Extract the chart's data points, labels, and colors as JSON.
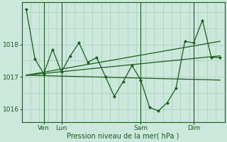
{
  "background_color": "#cce8dc",
  "grid_color_h": "#aaccbb",
  "grid_color_v": "#aaccbb",
  "line_color": "#1a5c1a",
  "text_color": "#1a5c1a",
  "xlabel": "Pression niveau de la mer( hPa )",
  "yticks": [
    1016,
    1017,
    1018
  ],
  "ylim": [
    1015.6,
    1019.3
  ],
  "xlim": [
    -0.5,
    22.5
  ],
  "xtick_positions": [
    2,
    4,
    13,
    19
  ],
  "xtick_labels": [
    "Ven",
    "Lun",
    "Sam",
    "Dim"
  ],
  "vline_positions": [
    2,
    4,
    13,
    19
  ],
  "series1": {
    "x": [
      0,
      1,
      2,
      3,
      4,
      5,
      6,
      7,
      8,
      9,
      10,
      11,
      12,
      13,
      14,
      15,
      16,
      17,
      18,
      19,
      20,
      21,
      22
    ],
    "y": [
      1019.1,
      1017.55,
      1017.1,
      1017.85,
      1017.15,
      1017.65,
      1018.05,
      1017.45,
      1017.6,
      1017.0,
      1016.4,
      1016.85,
      1017.35,
      1016.9,
      1016.05,
      1015.95,
      1016.2,
      1016.65,
      1018.1,
      1018.05,
      1018.75,
      1017.6,
      1017.6
    ]
  },
  "series2": {
    "x": [
      0,
      22
    ],
    "y": [
      1017.05,
      1016.9
    ]
  },
  "series3": {
    "x": [
      0,
      22
    ],
    "y": [
      1017.05,
      1017.65
    ]
  },
  "series4": {
    "x": [
      0,
      22
    ],
    "y": [
      1017.05,
      1018.1
    ]
  }
}
